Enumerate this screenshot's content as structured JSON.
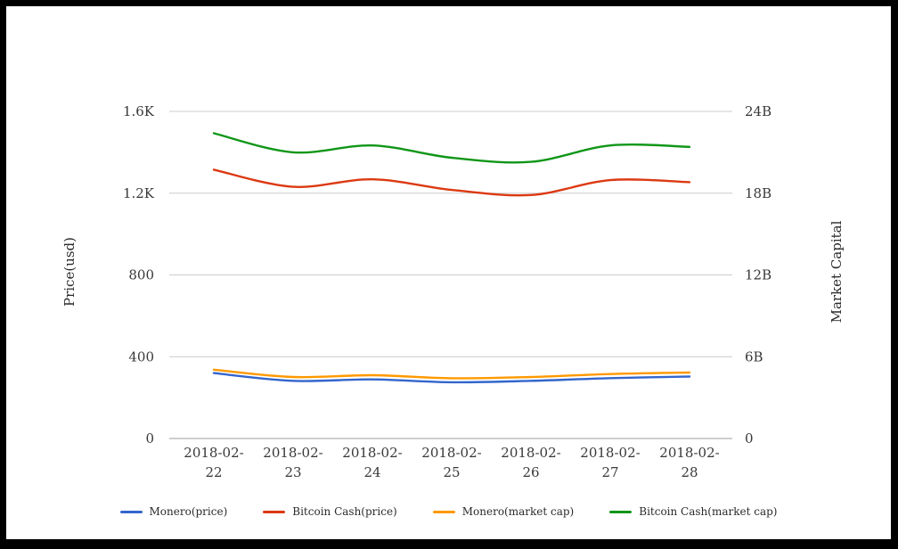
{
  "chart_data": {
    "type": "line",
    "title": "",
    "x_categories": [
      "2018-02-22",
      "2018-02-23",
      "2018-02-24",
      "2018-02-25",
      "2018-02-26",
      "2018-02-27",
      "2018-02-28"
    ],
    "left_axis": {
      "title": "Price(usd)",
      "ticks": [
        "0",
        "400",
        "800",
        "1.2K",
        "1.6K"
      ],
      "min": 0,
      "max": 1600,
      "unit": "USD"
    },
    "right_axis": {
      "title": "Market Capital",
      "ticks": [
        "0",
        "6B",
        "12B",
        "18B",
        "24B"
      ],
      "min": 0,
      "max": 24,
      "unit": "billion USD"
    },
    "series": [
      {
        "name": "Monero(price)",
        "color": "#3366cc",
        "axis": "left",
        "values": [
          320,
          282,
          289,
          275,
          282,
          295,
          303
        ]
      },
      {
        "name": "Bitcoin Cash(price)",
        "color": "#dc3912",
        "axis": "left",
        "values": [
          1315,
          1231,
          1268,
          1216,
          1191,
          1264,
          1254
        ]
      },
      {
        "name": "Monero(market cap)",
        "color": "#ff9900",
        "axis": "right",
        "values": [
          5.05,
          4.51,
          4.64,
          4.42,
          4.51,
          4.73,
          4.84
        ]
      },
      {
        "name": "Bitcoin Cash(market cap)",
        "color": "#109618",
        "axis": "right",
        "values": [
          22.4,
          21.0,
          21.5,
          20.6,
          20.3,
          21.5,
          21.4
        ]
      }
    ],
    "legend_position": "bottom",
    "grid": true
  }
}
